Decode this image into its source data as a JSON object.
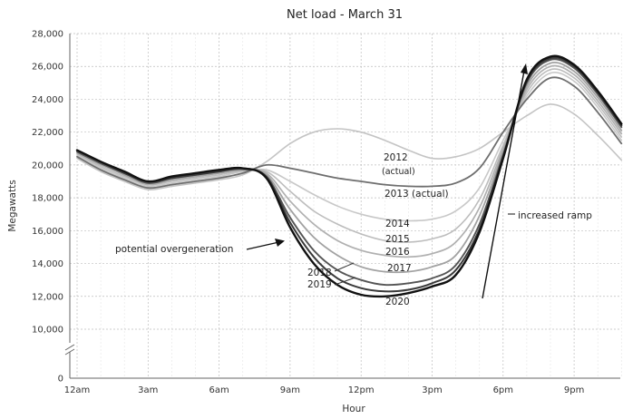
{
  "chart_data": {
    "type": "line",
    "title": "Net load - March 31",
    "xlabel": "Hour",
    "ylabel": "Megawatts",
    "x": [
      0,
      1,
      2,
      3,
      4,
      5,
      6,
      7,
      8,
      9,
      10,
      11,
      12,
      13,
      14,
      15,
      16,
      17,
      18,
      19,
      20,
      21,
      22,
      23
    ],
    "x_tick_labels": [
      "12am",
      "3am",
      "6am",
      "9am",
      "12pm",
      "3pm",
      "6pm",
      "9pm"
    ],
    "x_tick_hours": [
      0,
      3,
      6,
      9,
      12,
      15,
      18,
      21
    ],
    "y_ticks": [
      0,
      10000,
      12000,
      14000,
      16000,
      18000,
      20000,
      22000,
      24000,
      26000,
      28000
    ],
    "y_tick_labels": [
      "0",
      "10,000",
      "12,000",
      "14,000",
      "16,000",
      "18,000",
      "20,000",
      "22,000",
      "24,000",
      "26,000",
      "28,000"
    ],
    "ylim": [
      0,
      28000
    ],
    "y_axis_break": true,
    "grid": true,
    "legend": "none",
    "series": [
      {
        "name": "2012 (actual)",
        "values": [
          20400,
          19600,
          19000,
          18500,
          18700,
          18900,
          19100,
          19400,
          20200,
          21300,
          22000,
          22200,
          22000,
          21500,
          20900,
          20400,
          20500,
          21000,
          22000,
          23000,
          23700,
          23100,
          21800,
          20300
        ]
      },
      {
        "name": "2013 (actual)",
        "values": [
          20500,
          19700,
          19100,
          18600,
          18800,
          19000,
          19200,
          19500,
          20000,
          19800,
          19500,
          19200,
          19000,
          18800,
          18700,
          18700,
          18900,
          19800,
          22000,
          24000,
          25300,
          24800,
          23200,
          21300
        ]
      },
      {
        "name": "2014",
        "values": [
          20600,
          19800,
          19200,
          18700,
          18900,
          19100,
          19300,
          19600,
          19700,
          19000,
          18200,
          17500,
          17000,
          16700,
          16600,
          16700,
          17200,
          18600,
          21500,
          24200,
          25600,
          25100,
          23500,
          21500
        ]
      },
      {
        "name": "2015",
        "values": [
          20700,
          19900,
          19300,
          18800,
          19000,
          19200,
          19400,
          19650,
          19600,
          18400,
          17200,
          16400,
          15800,
          15400,
          15300,
          15500,
          16100,
          17900,
          21200,
          24400,
          25800,
          25300,
          23700,
          21700
        ]
      },
      {
        "name": "2016",
        "values": [
          20700,
          20000,
          19400,
          18800,
          19100,
          19300,
          19500,
          19700,
          19500,
          17800,
          16400,
          15400,
          14800,
          14500,
          14400,
          14600,
          15300,
          17400,
          21000,
          24600,
          26000,
          25500,
          23900,
          21900
        ]
      },
      {
        "name": "2017",
        "values": [
          20800,
          20100,
          19400,
          18900,
          19100,
          19300,
          19500,
          19700,
          19400,
          17300,
          15600,
          14500,
          13800,
          13500,
          13500,
          13800,
          14500,
          16900,
          20800,
          24800,
          26200,
          25700,
          24100,
          22100
        ]
      },
      {
        "name": "2018",
        "values": [
          20800,
          20100,
          19500,
          18900,
          19200,
          19400,
          19600,
          19750,
          19300,
          16800,
          14800,
          13600,
          13000,
          12700,
          12800,
          13100,
          13900,
          16400,
          20600,
          25000,
          26400,
          25900,
          24300,
          22300
        ]
      },
      {
        "name": "2019",
        "values": [
          20900,
          20200,
          19500,
          19000,
          19200,
          19400,
          19600,
          19800,
          19250,
          16500,
          14400,
          13100,
          12500,
          12300,
          12400,
          12800,
          13600,
          16100,
          20500,
          25100,
          26500,
          26000,
          24400,
          22400
        ]
      },
      {
        "name": "2020",
        "values": [
          20900,
          20200,
          19600,
          19000,
          19300,
          19500,
          19700,
          19800,
          19200,
          16200,
          14000,
          12700,
          12100,
          12000,
          12200,
          12600,
          13300,
          15900,
          20400,
          25200,
          26600,
          26100,
          24500,
          22500
        ]
      }
    ],
    "annotations": {
      "potential_overgeneration": "potential overgeneration",
      "increased_ramp": "increased ramp",
      "label_2012_a": "2012",
      "label_2012_b": "(actual)",
      "label_2013": "2013 (actual)",
      "label_2014": "2014",
      "label_2015": "2015",
      "label_2016": "2016",
      "label_2017": "2017",
      "label_2018": "2018",
      "label_2019": "2019",
      "label_2020": "2020"
    },
    "colors": {
      "2012 (actual)": "#c4c4c4",
      "2013 (actual)": "#6e6e6e",
      "2014": "#c8c8c8",
      "2015": "#bdbdbd",
      "2016": "#b0b0b0",
      "2017": "#a2a2a2",
      "2018": "#555555",
      "2019": "#3a3a3a",
      "2020": "#111111"
    }
  }
}
